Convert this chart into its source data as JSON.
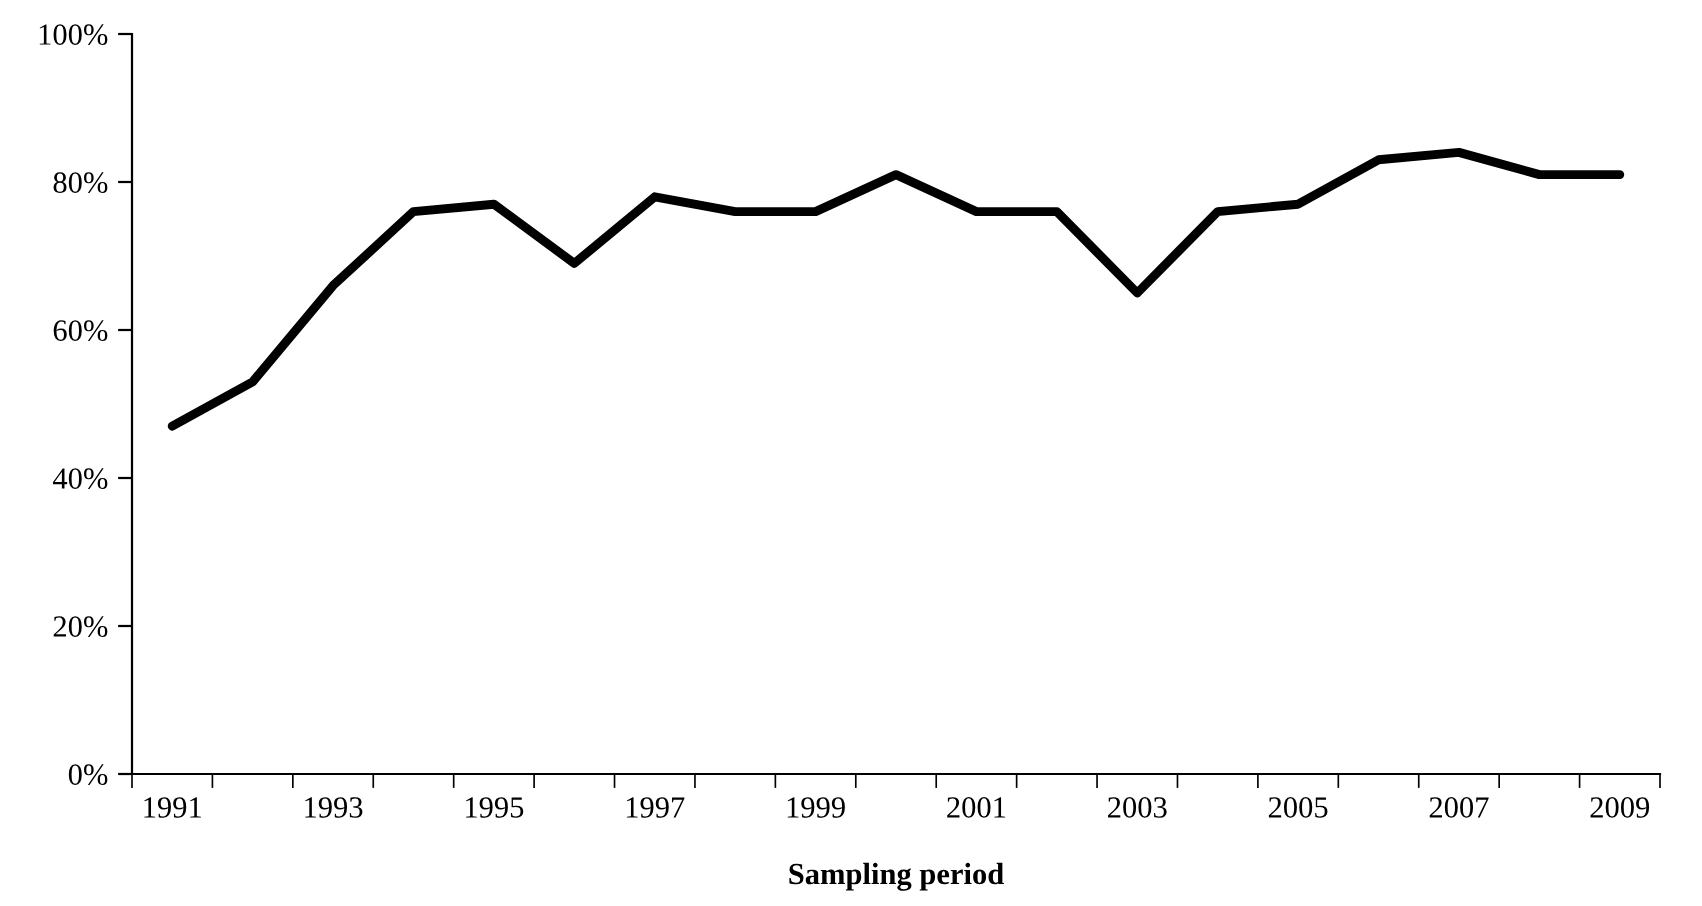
{
  "chart_data": {
    "type": "line",
    "xlabel": "Sampling period",
    "categories": [
      "1991",
      null,
      "1993",
      null,
      "1995",
      null,
      "1997",
      null,
      "1999",
      null,
      "2001",
      null,
      "2003",
      null,
      "2005",
      null,
      "2007",
      null,
      "2009"
    ],
    "series": [
      {
        "color": "#000000",
        "values": [
          47,
          53,
          66,
          76,
          77,
          69,
          78,
          76,
          76,
          81,
          76,
          76,
          65,
          76,
          77,
          83,
          84,
          81,
          81
        ]
      }
    ],
    "ylim": [
      0,
      100
    ],
    "yticks": [
      {
        "value": 0,
        "label": "0%"
      },
      {
        "value": 20,
        "label": "20%"
      },
      {
        "value": 40,
        "label": "40%"
      },
      {
        "value": 60,
        "label": "60%"
      },
      {
        "value": 80,
        "label": "80%"
      },
      {
        "value": 100,
        "label": "100%"
      }
    ],
    "grid": false,
    "legend": false,
    "marker": "none",
    "line_style": "solid"
  }
}
